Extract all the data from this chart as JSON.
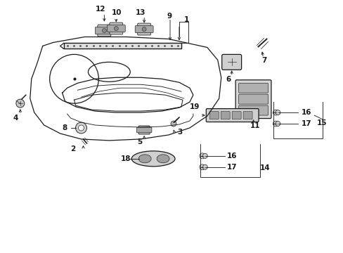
{
  "background_color": "#ffffff",
  "fig_width": 4.89,
  "fig_height": 3.6,
  "dpi": 100,
  "line_color": "#1a1a1a",
  "font_size": 7.5
}
